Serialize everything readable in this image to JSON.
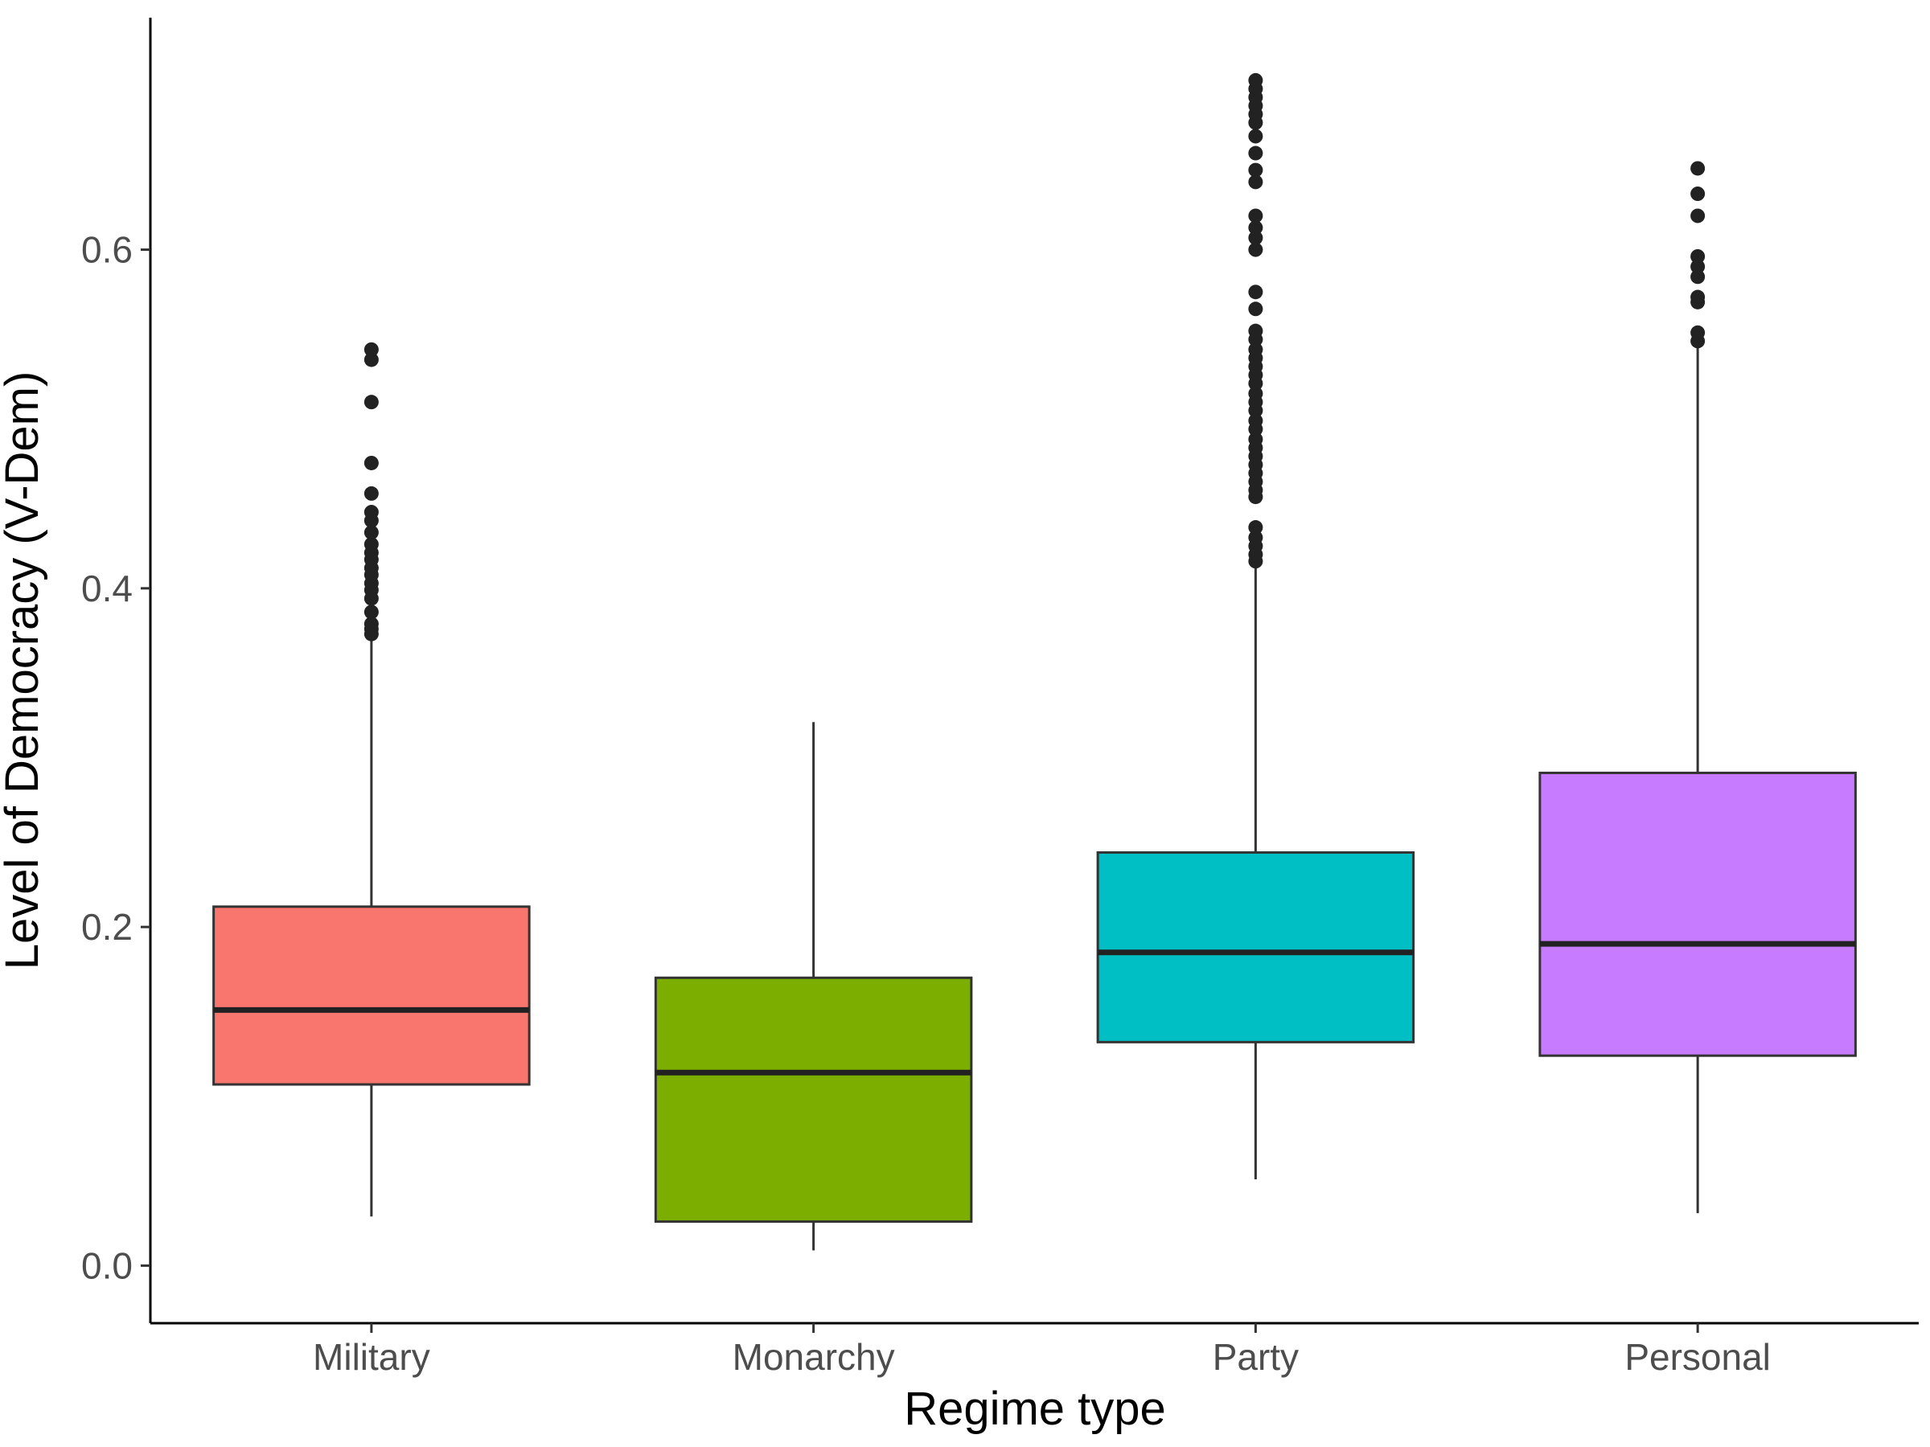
{
  "chart_data": {
    "type": "boxplot",
    "xlabel": "Regime type",
    "ylabel": "Level of Democracy (V-Dem)",
    "ylim": [
      -0.034,
      0.737
    ],
    "yticks": [
      0.0,
      0.2,
      0.4,
      0.6
    ],
    "ytick_labels": [
      "0.0",
      "0.2",
      "0.4",
      "0.6"
    ],
    "grid": false,
    "legend": "none",
    "categories": [
      "Military",
      "Monarchy",
      "Party",
      "Personal"
    ],
    "boxes": [
      {
        "category": "Military",
        "color": "#F8766D",
        "whisker_low": 0.029,
        "q1": 0.107,
        "median": 0.151,
        "q3": 0.212,
        "whisker_high": 0.372,
        "outliers": [
          0.373,
          0.376,
          0.379,
          0.386,
          0.394,
          0.399,
          0.403,
          0.408,
          0.412,
          0.417,
          0.421,
          0.426,
          0.433,
          0.44,
          0.445,
          0.456,
          0.474,
          0.51,
          0.535,
          0.541
        ]
      },
      {
        "category": "Monarchy",
        "color": "#7CAE00",
        "whisker_low": 0.009,
        "q1": 0.026,
        "median": 0.114,
        "q3": 0.17,
        "whisker_high": 0.321,
        "outliers": []
      },
      {
        "category": "Party",
        "color": "#00BFC4",
        "whisker_low": 0.051,
        "q1": 0.132,
        "median": 0.185,
        "q3": 0.244,
        "whisker_high": 0.415,
        "outliers": [
          0.416,
          0.42,
          0.425,
          0.43,
          0.436,
          0.454,
          0.458,
          0.463,
          0.468,
          0.473,
          0.478,
          0.483,
          0.488,
          0.494,
          0.499,
          0.505,
          0.51,
          0.515,
          0.521,
          0.526,
          0.531,
          0.536,
          0.541,
          0.547,
          0.552,
          0.565,
          0.575,
          0.6,
          0.607,
          0.613,
          0.62,
          0.64,
          0.647,
          0.657,
          0.667,
          0.675,
          0.68,
          0.685,
          0.69,
          0.695,
          0.7
        ]
      },
      {
        "category": "Personal",
        "color": "#C77CFF",
        "whisker_low": 0.031,
        "q1": 0.124,
        "median": 0.19,
        "q3": 0.291,
        "whisker_high": 0.543,
        "outliers": [
          0.546,
          0.551,
          0.569,
          0.572,
          0.584,
          0.59,
          0.596,
          0.62,
          0.633,
          0.648
        ]
      }
    ]
  }
}
